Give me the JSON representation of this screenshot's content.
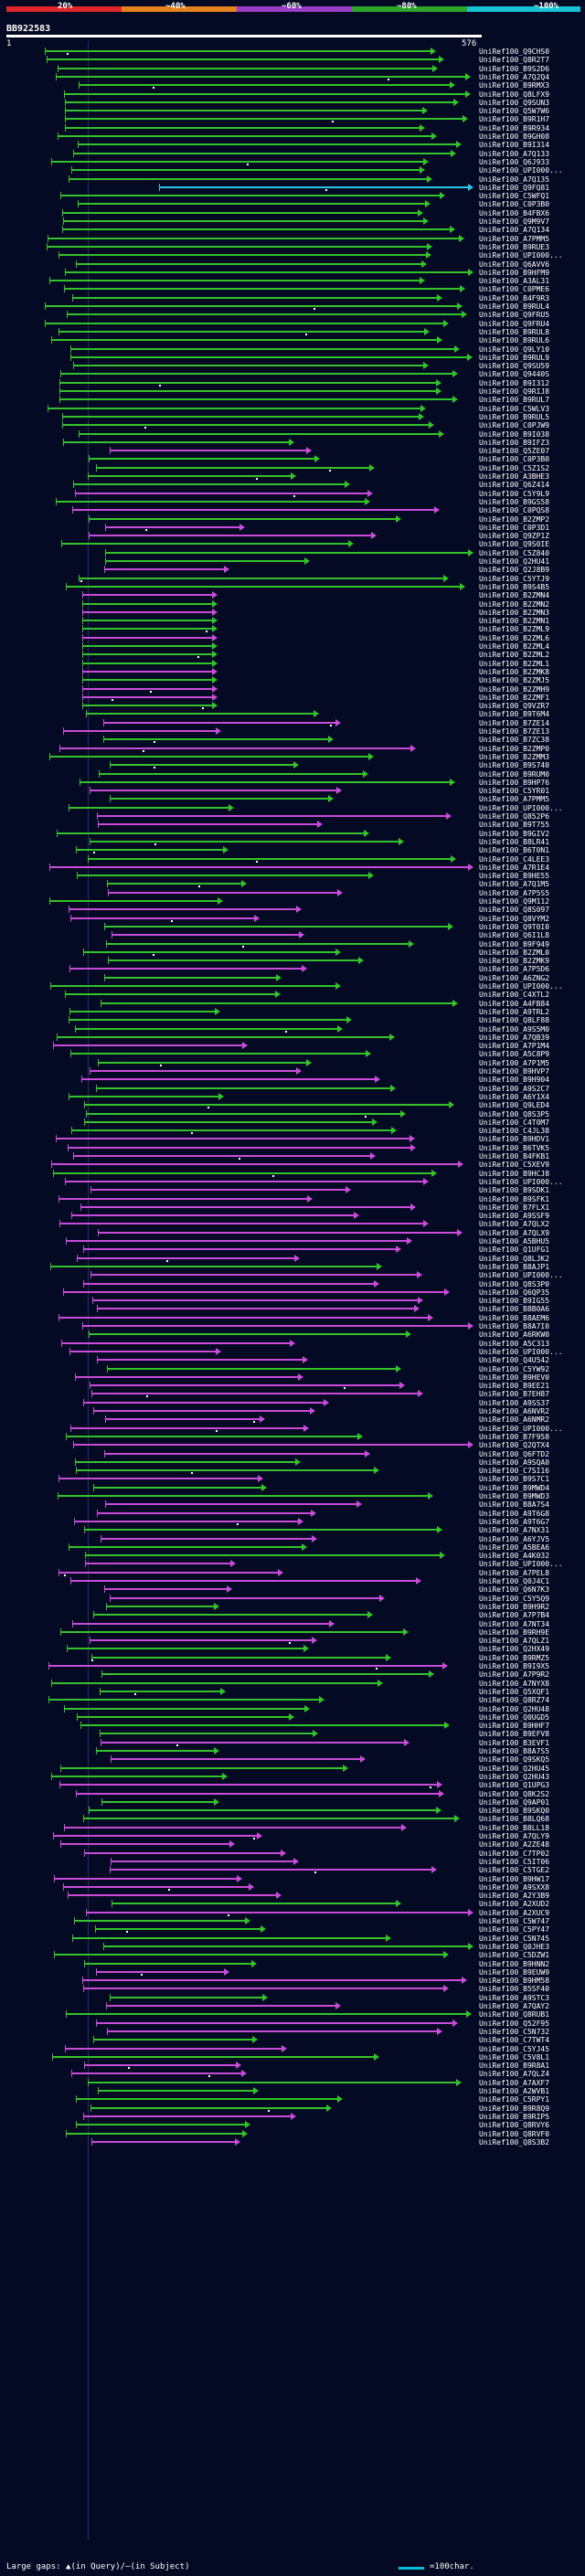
{
  "legend": {
    "labels": [
      "20%",
      "~40%",
      "~60%",
      "~80%",
      "~100%"
    ],
    "colors": [
      "#e0262b",
      "#e6821e",
      "#9c3dc8",
      "#2ca52a",
      "#16c3d6"
    ]
  },
  "query": {
    "id": "BB922583",
    "start": "1",
    "end": "576"
  },
  "hit_colors": {
    "green": "#34c22a",
    "magenta": "#c94bd8",
    "cyan": "#2bc3e6"
  },
  "hits": [
    "UniRef100_Q9CHS0",
    "UniRef100_Q8R2T7",
    "UniRef100_B9S2D6",
    "UniRef100_A7Q2Q4",
    "UniRef100_B9RMX3",
    "UniRef100_Q8LFX9",
    "UniRef100_Q9SUN3",
    "UniRef100_Q5W7W6",
    "UniRef100_B9R1H7",
    "UniRef100_B9R934",
    "UniRef100_B9GH08",
    "UniRef100_B9I314",
    "UniRef100_A7Q133",
    "UniRef100_Q6J933",
    "UniRef100_UPI000...",
    "UniRef100_A7Q135",
    "UniRef100_Q9FQ81",
    "UniRef100_C5WFQ1",
    "UniRef100_C0P3B0",
    "UniRef100_B4FBX6",
    "UniRef100_Q9M9V7",
    "UniRef100_A7Q134",
    "UniRef100_A7PMM5",
    "UniRef100_B9RUE3",
    "UniRef100_UPI000...",
    "UniRef100_Q6AVV6",
    "UniRef100_B9HFM9",
    "UniRef100_A3AL31",
    "UniRef100_C0PME6",
    "UniRef100_B4F9R3",
    "UniRef100_B9RUL4",
    "UniRef100_Q9FRU5",
    "UniRef100_Q9FRU4",
    "UniRef100_B9RUL8",
    "UniRef100_B9RUL6",
    "UniRef100_Q9LY10",
    "UniRef100_B9RUL9",
    "UniRef100_Q9SU59",
    "UniRef100_Q9440S",
    "UniRef100_B9I312",
    "UniRef100_Q9RIJ8",
    "UniRef100_B9RUL7",
    "UniRef100_C5WLV3",
    "UniRef100_B9RUL5",
    "UniRef100_C0PJW9",
    "UniRef100_B9I038",
    "UniRef100_B9IFZ3",
    "UniRef100_Q5ZE07",
    "UniRef100_C0P3B0",
    "UniRef100_C5Z1S2",
    "UniRef100_A3BHE3",
    "UniRef100_Q6Z414",
    "UniRef100_C5Y9L9",
    "UniRef100_B9GS58",
    "UniRef100_C0PQS8",
    "UniRef100_B2ZMP2",
    "UniRef100_C0P3D1",
    "UniRef100_Q9ZP1Z",
    "UniRef100_Q9S0IE",
    "UniRef100_C5Z840",
    "UniRef100_Q2HU41",
    "UniRef100_Q2J8B9",
    "UniRef100_C5YTJ9",
    "UniRef100_B9S4B5",
    "UniRef100_B2ZMN4",
    "UniRef100_B2ZMN2",
    "UniRef100_B2ZMN3",
    "UniRef100_B2ZMN1",
    "UniRef100_B2ZML9",
    "UniRef100_B2ZML6",
    "UniRef100_B2ZML4",
    "UniRef100_B2ZML2",
    "UniRef100_B2ZML1",
    "UniRef100_B2ZMK8",
    "UniRef100_B2ZMJ5",
    "UniRef100_B2ZMH9",
    "UniRef100_B2ZMF1",
    "UniRef100_Q9VZR7",
    "UniRef100_B9T6M4",
    "UniRef100_B7ZE14",
    "UniRef100_B7ZE13",
    "UniRef100_B7ZC38",
    "UniRef100_B2ZMP0",
    "UniRef100_B2ZMM3",
    "UniRef100_B9S740",
    "UniRef100_B9RUM0",
    "UniRef100_B9HP76",
    "UniRef100_C5YR01",
    "UniRef100_A7PMM5",
    "UniRef100_UPI000...",
    "UniRef100_Q852P6",
    "UniRef100_B9T755",
    "UniRef100_B9GIV2",
    "UniRef100_B8LR41",
    "UniRef100_B6T0N1",
    "UniRef100_C4LEE3",
    "UniRef100_A7R1E4",
    "UniRef100_B9HE55",
    "UniRef100_A7Q1M5",
    "UniRef100_A7P5S5",
    "UniRef100_Q9M112",
    "UniRef100_Q8S097",
    "UniRef100_Q8VYM2",
    "UniRef100_Q9T0I0",
    "UniRef100_Q6I1L8",
    "UniRef100_B9F949",
    "UniRef100_B2ZML0",
    "UniRef100_B2ZMK9",
    "UniRef100_A7P5D6",
    "UniRef100_A6ZNG2",
    "UniRef100_UPI000...",
    "UniRef100_C4XTL2",
    "UniRef100_A4FB84",
    "UniRef100_A9TRL2",
    "UniRef100_Q8LF88",
    "UniRef100_A9S5M0",
    "UniRef100_A7QB39",
    "UniRef100_A7P1M4",
    "UniRef100_A5C8P9",
    "UniRef100_A7P1M5",
    "UniRef100_B9HVP7",
    "UniRef100_B9H904",
    "UniRef100_A9S2C7",
    "UniRef100_A6Y1X4",
    "UniRef100_Q9LED4",
    "UniRef100_Q8S3P5",
    "UniRef100_C4T0M7",
    "UniRef100_C4JL38",
    "UniRef100_B9HDV1",
    "UniRef100_B6TVK5",
    "UniRef100_B4FKB1",
    "UniRef100_C5XEV9",
    "UniRef100_B9HCJ8",
    "UniRef100_UPI000...",
    "UniRef100_B9SDK1",
    "UniRef100_B9SFK1",
    "UniRef100_B7FLX1",
    "UniRef100_A9SSF9",
    "UniRef100_A7QLX2",
    "UniRef100_A7QLX9",
    "UniRef100_A5BHU5",
    "UniRef100_Q1UFG1",
    "UniRef100_Q8LJK2",
    "UniRef100_B8AJP1",
    "UniRef100_UPI000...",
    "UniRef100_Q8S3P0",
    "UniRef100_Q6QP35",
    "UniRef100_B9IG55",
    "UniRef100_B8B0A6",
    "UniRef100_B8AEM6",
    "UniRef100_B8A7I0",
    "UniRef100_A6RKW0",
    "UniRef100_A5C313",
    "UniRef100_UPI000...",
    "UniRef100_Q4U542",
    "UniRef100_C5YW92",
    "UniRef100_B9HEV0",
    "UniRef100_B9EE21",
    "UniRef100_B7EH87",
    "UniRef100_A9SS37",
    "UniRef100_A6NVR2",
    "UniRef100_A6NMR2",
    "UniRef100_UPI000...",
    "UniRef100_B7F958",
    "UniRef100_Q2QTX4",
    "UniRef100_Q6FTD2",
    "UniRef100_A9SQA0",
    "UniRef100_C7SI16",
    "UniRef100_B9S7C1",
    "UniRef100_B9MWD4",
    "UniRef100_B9MWD3",
    "UniRef100_B8A7S4",
    "UniRef100_A9T6G8",
    "UniRef100_A9T6G7",
    "UniRef100_A7NX31",
    "UniRef100_A6YJV5",
    "UniRef100_A5BEA6",
    "UniRef100_A4K032",
    "UniRef100_UPI000...",
    "UniRef100_A7PEL8",
    "UniRef100_Q0J4C1",
    "UniRef100_Q6N7K3",
    "UniRef100_C5Y5Q9",
    "UniRef100_B9H9R2",
    "UniRef100_A7P7B4",
    "UniRef100_A7NT34",
    "UniRef100_B9RH9E",
    "UniRef100_A7QLZ1",
    "UniRef100_Q2HX49",
    "UniRef100_B9RMZ5",
    "UniRef100_B9I9X5",
    "UniRef100_A7P9R2",
    "UniRef100_A7NYX8",
    "UniRef100_Q5XQF1",
    "UniRef100_Q8RZ74",
    "UniRef100_Q2HU48",
    "UniRef100_Q0UGD5",
    "UniRef100_B9HHF7",
    "UniRef100_B9EFV8",
    "UniRef100_B3EVF1",
    "UniRef100_B8A7S5",
    "UniRef100_Q9SKQ5",
    "UniRef100_Q2HU45",
    "UniRef100_Q2HU43",
    "UniRef100_Q1UPG3",
    "UniRef100_Q8K2S2",
    "UniRef100_Q9AP01",
    "UniRef100_B9SKQ0",
    "UniRef100_B8LQ68",
    "UniRef100_B8LL18",
    "UniRef100_A7QLY9",
    "UniRef100_A2ZE48",
    "UniRef100_C7TP02",
    "UniRef100_C5IT06",
    "UniRef100_C5TGE2",
    "UniRef100_B9HW17",
    "UniRef100_A9SXX8",
    "UniRef100_A2Y3B9",
    "UniRef100_A2XUD2",
    "UniRef100_A2XUC9",
    "UniRef100_C5W747",
    "UniRef100_C5PY47",
    "UniRef100_C5N745",
    "UniRef100_Q0JHE3",
    "UniRef100_C5DZW1",
    "UniRef100_B9HNN2",
    "UniRef100_B9EUW9",
    "UniRef100_B9HM58",
    "UniRef100_B5SF40",
    "UniRef100_A9STC3",
    "UniRef100_A7QAY2",
    "UniRef100_Q8RUB1",
    "UniRef100_Q52F95",
    "UniRef100_C5N732",
    "UniRef100_C7TWT4",
    "UniRef100_C5YJ45",
    "UniRef100_C5V8L1",
    "UniRef100_B9R8A1",
    "UniRef100_A7QLZ4",
    "UniRef100_A7AXF7",
    "UniRef100_A2WVB1",
    "UniRef100_C5RPY1",
    "UniRef100_B9R8Q9",
    "UniRef100_B9RIP5",
    "UniRef100_Q8RVY6",
    "UniRef100_Q8RVF0",
    "UniRef100_Q8S3B2"
  ],
  "footer": {
    "text": "Large gaps: ▲(in Query)/–(in Subject)",
    "scale_label": "=100char."
  }
}
